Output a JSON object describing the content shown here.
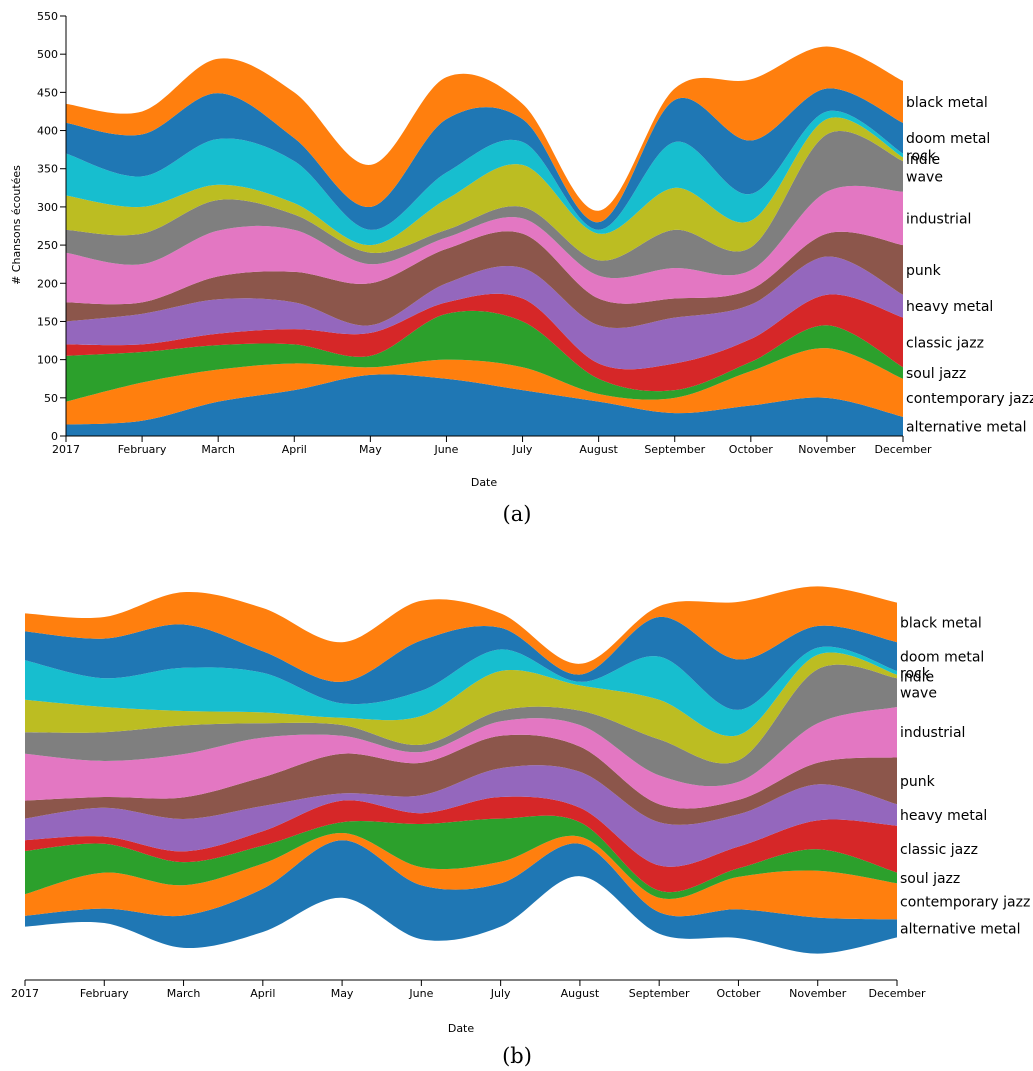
{
  "chart_data": [
    {
      "type": "area",
      "variant": "stacked",
      "caption": "(a)",
      "xlabel": "Date",
      "ylabel": "# Chansons écoutées",
      "ylim": [
        0,
        550
      ],
      "yticks": [
        0,
        50,
        100,
        150,
        200,
        250,
        300,
        350,
        400,
        450,
        500,
        550
      ],
      "x": [
        "2017",
        "February",
        "March",
        "April",
        "May",
        "June",
        "July",
        "August",
        "September",
        "October",
        "November",
        "December"
      ],
      "series": [
        {
          "name": "alternative metal",
          "color": "#1f77b4",
          "values": [
            15,
            20,
            45,
            60,
            80,
            75,
            60,
            45,
            30,
            40,
            50,
            25
          ]
        },
        {
          "name": "contemporary jazz",
          "color": "#ff7f0e",
          "values": [
            30,
            50,
            42,
            35,
            10,
            25,
            30,
            10,
            20,
            45,
            65,
            50
          ]
        },
        {
          "name": "soul jazz",
          "color": "#2ca02c",
          "values": [
            60,
            40,
            32,
            25,
            15,
            60,
            60,
            20,
            10,
            12,
            30,
            15
          ]
        },
        {
          "name": "classic jazz",
          "color": "#d62728",
          "values": [
            15,
            10,
            15,
            20,
            30,
            15,
            30,
            20,
            35,
            30,
            40,
            65
          ]
        },
        {
          "name": "heavy metal",
          "color": "#9467bd",
          "values": [
            30,
            40,
            45,
            35,
            10,
            25,
            40,
            50,
            60,
            45,
            50,
            30
          ]
        },
        {
          "name": "punk",
          "color": "#8c564b",
          "values": [
            25,
            15,
            30,
            40,
            55,
            45,
            45,
            35,
            25,
            20,
            30,
            65
          ]
        },
        {
          "name": "industrial",
          "color": "#e377c2",
          "values": [
            65,
            50,
            60,
            55,
            25,
            15,
            20,
            30,
            40,
            25,
            55,
            70
          ]
        },
        {
          "name": "wave",
          "color": "#7f7f7f",
          "values": [
            30,
            40,
            40,
            20,
            15,
            10,
            15,
            20,
            50,
            30,
            75,
            40
          ]
        },
        {
          "name": "indie",
          "color": "#bcbd22",
          "values": [
            45,
            35,
            20,
            15,
            10,
            40,
            55,
            35,
            55,
            35,
            20,
            5
          ]
        },
        {
          "name": "rock",
          "color": "#17becf",
          "values": [
            55,
            40,
            60,
            55,
            20,
            35,
            30,
            5,
            60,
            35,
            10,
            5
          ]
        },
        {
          "name": "doom metal",
          "color": "#1f77b4",
          "values": [
            40,
            55,
            60,
            30,
            30,
            70,
            30,
            10,
            55,
            70,
            30,
            40
          ]
        },
        {
          "name": "black metal",
          "color": "#ff7f0e",
          "values": [
            25,
            30,
            45,
            60,
            55,
            55,
            20,
            15,
            15,
            80,
            55,
            55
          ]
        }
      ]
    },
    {
      "type": "area",
      "variant": "streamgraph",
      "caption": "(b)",
      "xlabel": "Date",
      "x": [
        "2017",
        "February",
        "March",
        "April",
        "May",
        "June",
        "July",
        "August",
        "September",
        "October",
        "November",
        "December"
      ],
      "series": [
        {
          "name": "alternative metal",
          "color": "#1f77b4",
          "values": [
            15,
            20,
            45,
            60,
            80,
            75,
            60,
            45,
            30,
            40,
            50,
            25
          ]
        },
        {
          "name": "contemporary jazz",
          "color": "#ff7f0e",
          "values": [
            30,
            50,
            42,
            35,
            10,
            25,
            30,
            10,
            20,
            45,
            65,
            50
          ]
        },
        {
          "name": "soul jazz",
          "color": "#2ca02c",
          "values": [
            60,
            40,
            32,
            25,
            15,
            60,
            60,
            20,
            10,
            12,
            30,
            15
          ]
        },
        {
          "name": "classic jazz",
          "color": "#d62728",
          "values": [
            15,
            10,
            15,
            20,
            30,
            15,
            30,
            20,
            35,
            30,
            40,
            65
          ]
        },
        {
          "name": "heavy metal",
          "color": "#9467bd",
          "values": [
            30,
            40,
            45,
            35,
            10,
            25,
            40,
            50,
            60,
            45,
            50,
            30
          ]
        },
        {
          "name": "punk",
          "color": "#8c564b",
          "values": [
            25,
            15,
            30,
            40,
            55,
            45,
            45,
            35,
            25,
            20,
            30,
            65
          ]
        },
        {
          "name": "industrial",
          "color": "#e377c2",
          "values": [
            65,
            50,
            60,
            55,
            25,
            15,
            20,
            30,
            40,
            25,
            55,
            70
          ]
        },
        {
          "name": "wave",
          "color": "#7f7f7f",
          "values": [
            30,
            40,
            40,
            20,
            15,
            10,
            15,
            20,
            50,
            30,
            75,
            40
          ]
        },
        {
          "name": "indie",
          "color": "#bcbd22",
          "values": [
            45,
            35,
            20,
            15,
            10,
            40,
            55,
            35,
            55,
            35,
            20,
            5
          ]
        },
        {
          "name": "rock",
          "color": "#17becf",
          "values": [
            55,
            40,
            60,
            55,
            20,
            35,
            30,
            5,
            60,
            35,
            10,
            5
          ]
        },
        {
          "name": "doom metal",
          "color": "#1f77b4",
          "values": [
            40,
            55,
            60,
            30,
            30,
            70,
            30,
            10,
            55,
            70,
            30,
            40
          ]
        },
        {
          "name": "black metal",
          "color": "#ff7f0e",
          "values": [
            25,
            30,
            45,
            60,
            55,
            55,
            20,
            15,
            15,
            80,
            55,
            55
          ]
        }
      ]
    }
  ]
}
